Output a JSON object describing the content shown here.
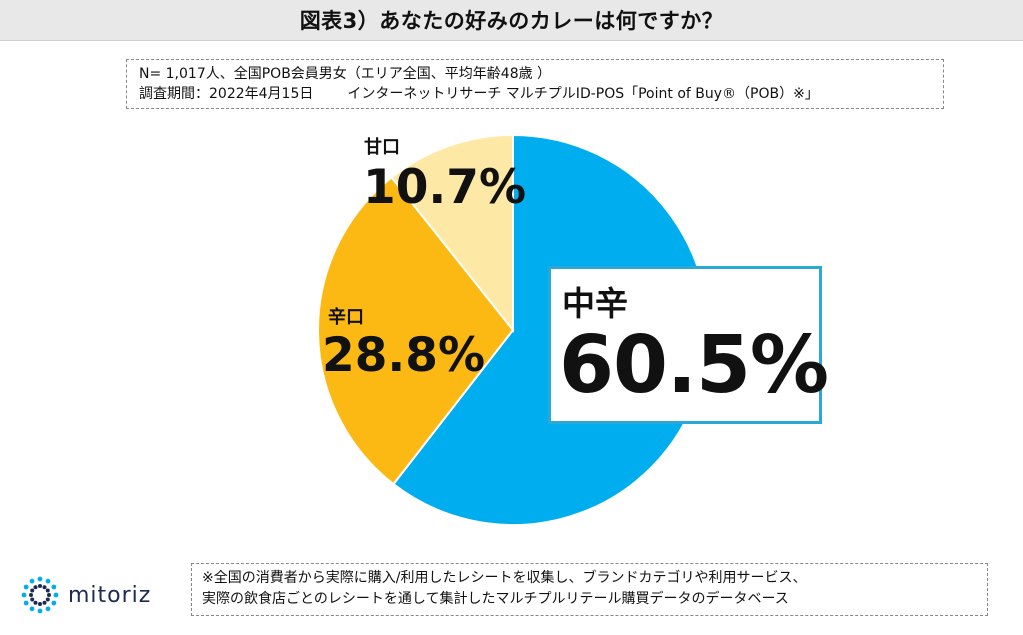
{
  "title": "図表3）あなたの好みのカレーは何ですか？",
  "note": {
    "line1": "N= 1,017人、全国POB会員男女（エリア全国、平均年齢48歳 ）",
    "line2a": "調査期間：2022年4月15日",
    "line2b": "インターネットリサーチ マルチプルID-POS「Point of Buy®（POB）※」"
  },
  "chart_data": {
    "type": "pie",
    "start_angle_deg": 0,
    "direction": "clockwise",
    "slices": [
      {
        "name": "中辛",
        "value": 60.5,
        "label": "60.5%",
        "color": "#00aeef"
      },
      {
        "name": "辛口",
        "value": 28.8,
        "label": "28.8%",
        "color": "#fdb913"
      },
      {
        "name": "甘口",
        "value": 10.7,
        "label": "10.7%",
        "color": "#fde8a6"
      }
    ]
  },
  "footer": {
    "line1": "※全国の消費者から実際に購入/利用したレシートを収集し、ブランドカテゴリや利用サービス、",
    "line2": "実際の飲食店ごとのレシートを通して集計したマルチプルリテール購買データのデータベース"
  },
  "logo": {
    "text": "mitoriz",
    "color": "#1d2b4f",
    "accent": "#00aeef"
  }
}
